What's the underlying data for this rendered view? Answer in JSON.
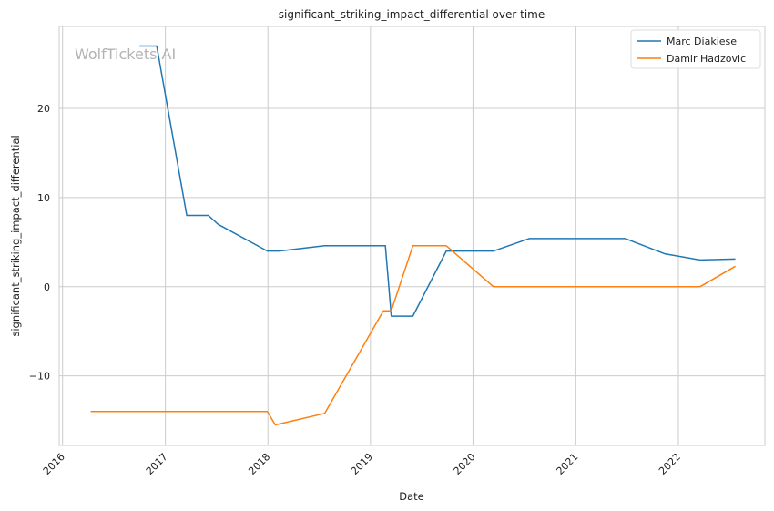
{
  "chart_data": {
    "type": "line",
    "title": "significant_striking_impact_differential over time",
    "xlabel": "Date",
    "ylabel": "significant_striking_impact_differential",
    "watermark": "WolfTickets AI",
    "x_range": [
      "2015-12-20",
      "2022-11-05"
    ],
    "ylim": [
      -17.8,
      29.2
    ],
    "x_ticks": [
      "2016",
      "2017",
      "2018",
      "2019",
      "2020",
      "2021",
      "2022"
    ],
    "y_ticks": [
      -10,
      0,
      10,
      20
    ],
    "y_tick_labels": [
      "−10",
      "0",
      "10",
      "20"
    ],
    "grid": true,
    "legend_position": "top-right",
    "series": [
      {
        "name": "Marc Diakiese",
        "color": "#1f77b4",
        "points": [
          [
            "2016-10-01",
            27.0
          ],
          [
            "2016-12-01",
            27.0
          ],
          [
            "2017-03-18",
            8.0
          ],
          [
            "2017-06-03",
            8.0
          ],
          [
            "2017-07-08",
            7.0
          ],
          [
            "2017-12-30",
            4.0
          ],
          [
            "2018-02-10",
            4.0
          ],
          [
            "2018-07-22",
            4.6
          ],
          [
            "2019-02-23",
            4.6
          ],
          [
            "2019-03-16",
            -3.3
          ],
          [
            "2019-06-01",
            -3.3
          ],
          [
            "2019-09-28",
            4.0
          ],
          [
            "2020-03-14",
            4.0
          ],
          [
            "2020-07-19",
            5.4
          ],
          [
            "2021-06-26",
            5.4
          ],
          [
            "2021-11-13",
            3.7
          ],
          [
            "2022-03-19",
            3.0
          ],
          [
            "2022-07-23",
            3.1
          ]
        ]
      },
      {
        "name": "Damir Hadzovic",
        "color": "#ff7f0e",
        "points": [
          [
            "2016-04-10",
            -14.0
          ],
          [
            "2017-12-30",
            -14.0
          ],
          [
            "2018-01-27",
            -15.5
          ],
          [
            "2018-07-22",
            -14.2
          ],
          [
            "2019-02-16",
            -2.7
          ],
          [
            "2019-03-16",
            -2.7
          ],
          [
            "2019-06-01",
            4.6
          ],
          [
            "2019-09-28",
            4.6
          ],
          [
            "2020-03-14",
            0.0
          ],
          [
            "2022-03-19",
            0.0
          ],
          [
            "2022-07-23",
            2.3
          ]
        ]
      }
    ]
  }
}
